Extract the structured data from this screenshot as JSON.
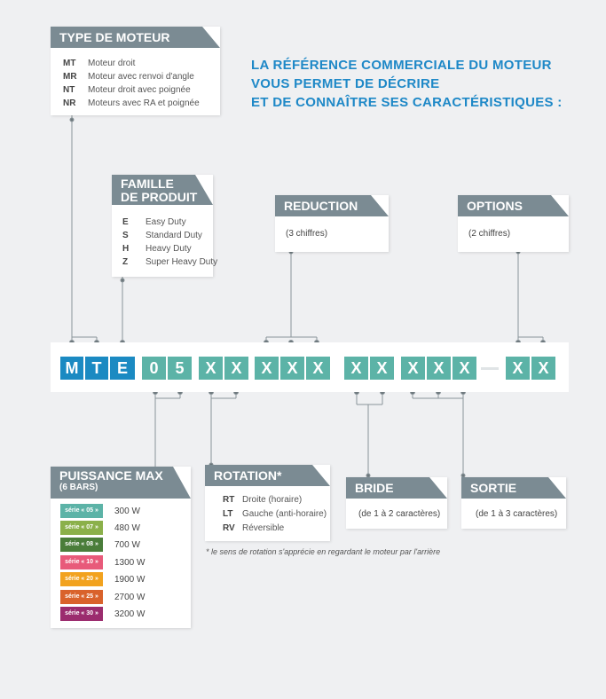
{
  "title": [
    "LA RÉFÉRENCE COMMERCIALE DU MOTEUR",
    "VOUS PERMET DE DÉCRIRE",
    "ET DE CONNAÎTRE SES CARACTÉRISTIQUES :"
  ],
  "type_moteur": {
    "header": "TYPE DE MOTEUR",
    "items": [
      {
        "code": "MT",
        "label": "Moteur droit"
      },
      {
        "code": "MR",
        "label": "Moteur avec renvoi d'angle"
      },
      {
        "code": "NT",
        "label": "Moteur droit avec poignée"
      },
      {
        "code": "NR",
        "label": "Moteurs avec RA et poignée"
      }
    ]
  },
  "famille": {
    "header_line1": "FAMILLE",
    "header_line2": "DE PRODUIT",
    "items": [
      {
        "code": "E",
        "label": "Easy Duty"
      },
      {
        "code": "S",
        "label": "Standard Duty"
      },
      {
        "code": "H",
        "label": "Heavy Duty"
      },
      {
        "code": "Z",
        "label": "Super Heavy Duty"
      }
    ]
  },
  "reduction": {
    "header": "REDUCTION",
    "note": "(3 chiffres)"
  },
  "options": {
    "header": "OPTIONS",
    "note": "(2 chiffres)"
  },
  "reference": {
    "chars": [
      "M",
      "T",
      "E",
      "0",
      "5",
      "X",
      "X",
      "X",
      "X",
      "X",
      "X",
      "X",
      "X",
      "X",
      "X",
      "X",
      "X"
    ],
    "dash": "–"
  },
  "puissance": {
    "header": "PUISSANCE MAX",
    "sub": "(6 BARS)",
    "items": [
      {
        "serie": "série « 05 »",
        "watts": "300 W",
        "color": "#5cb3a7"
      },
      {
        "serie": "série « 07 »",
        "watts": "480 W",
        "color": "#8bb04a"
      },
      {
        "serie": "série « 08 »",
        "watts": "700 W",
        "color": "#4a7d3a"
      },
      {
        "serie": "série « 10 »",
        "watts": "1300 W",
        "color": "#e85a7a"
      },
      {
        "serie": "série « 20 »",
        "watts": "1900 W",
        "color": "#f2a21e"
      },
      {
        "serie": "série « 25 »",
        "watts": "2700 W",
        "color": "#d9622b"
      },
      {
        "serie": "série « 30 »",
        "watts": "3200 W",
        "color": "#9b2c6e"
      }
    ]
  },
  "rotation": {
    "header": "ROTATION*",
    "items": [
      {
        "code": "RT",
        "label": "Droite (horaire)"
      },
      {
        "code": "LT",
        "label": "Gauche (anti-horaire)"
      },
      {
        "code": "RV",
        "label": "Réversible"
      }
    ],
    "footnote": "* le sens de rotation s'apprécie en regardant le moteur par l'arrière"
  },
  "bride": {
    "header": "BRIDE",
    "note": "(de 1 à 2 caractères)"
  },
  "sortie": {
    "header": "SORTIE",
    "note": "(de 1 à 3 caractères)"
  },
  "colors": {
    "blue": "#1b8ac2",
    "teal": "#5cb3a7",
    "header_grey": "#7b8b93",
    "title_blue": "#1e88c7"
  }
}
